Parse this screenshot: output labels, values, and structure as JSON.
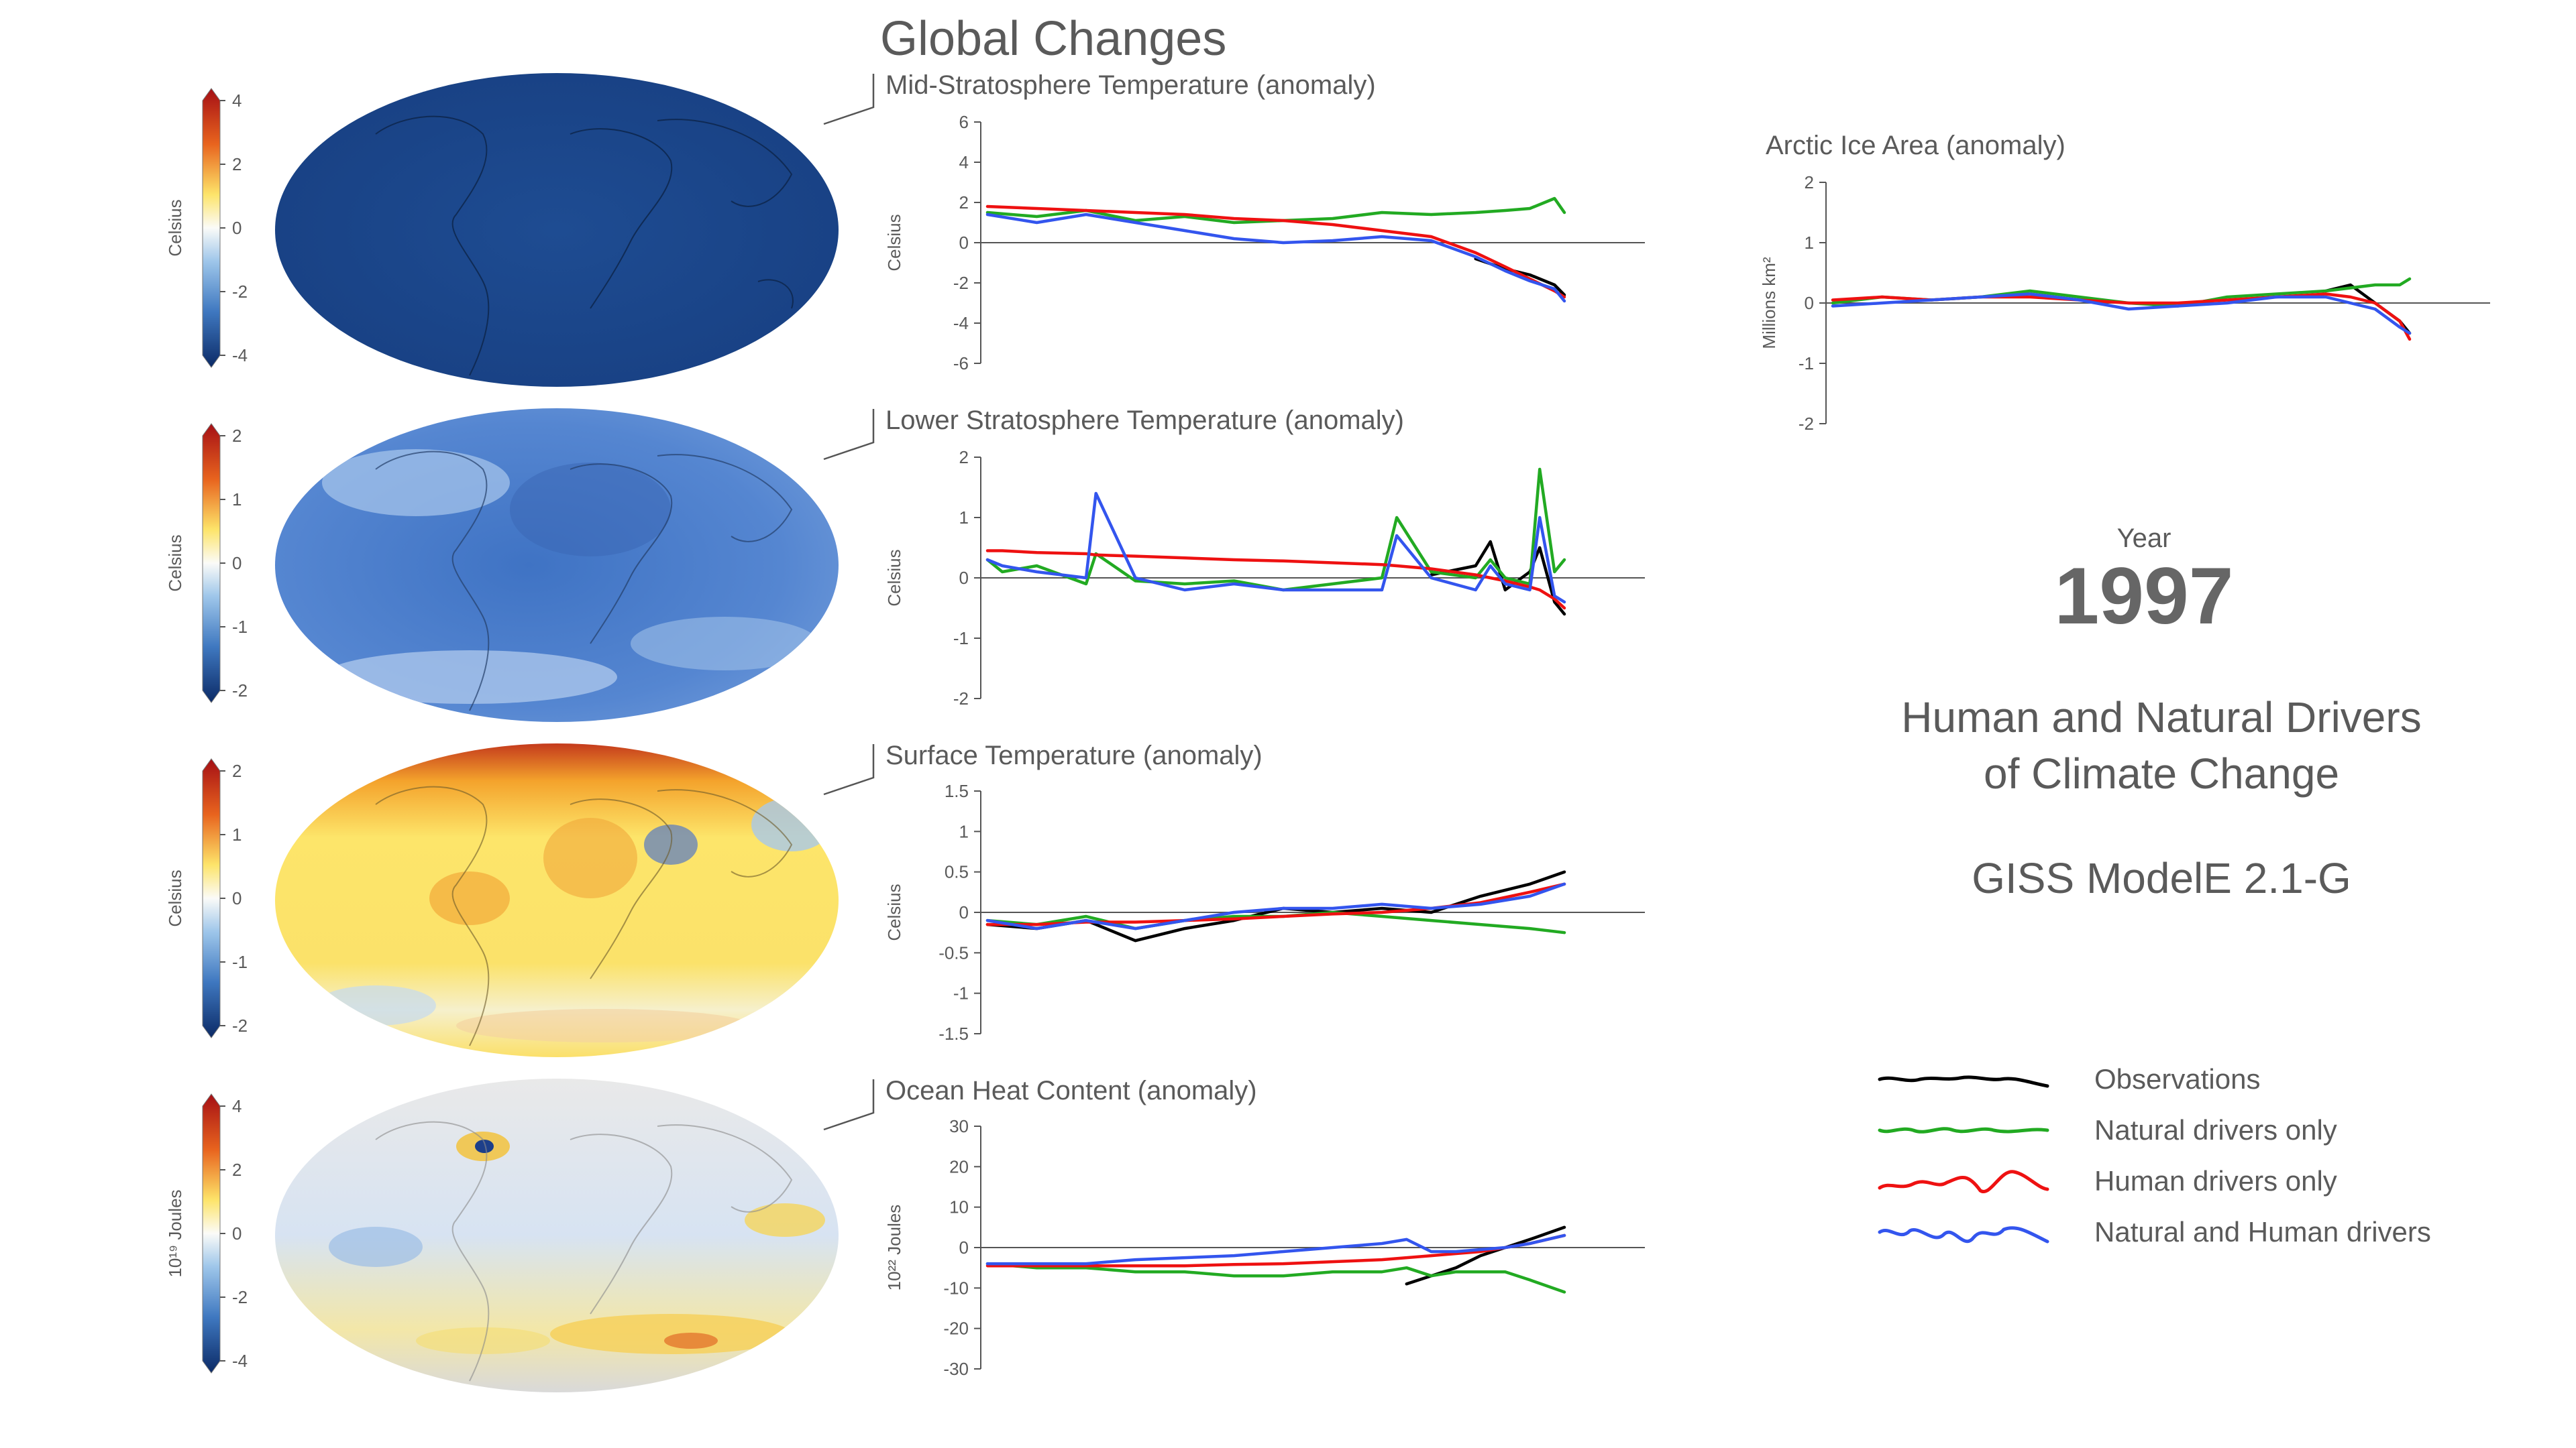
{
  "header": {
    "title": "Global Changes"
  },
  "info": {
    "year_label": "Year",
    "year": "1997",
    "subtitle_line1": "Human and Natural Drivers",
    "subtitle_line2": "of Climate Change",
    "model": "GISS ModelE 2.1-G"
  },
  "colors": {
    "observations": "#000000",
    "natural": "#22aa22",
    "human": "#ee1111",
    "both": "#3355ee"
  },
  "legend": [
    {
      "label": "Observations",
      "color": "#000000"
    },
    {
      "label": "Natural drivers only",
      "color": "#22aa22"
    },
    {
      "label": "Human drivers only",
      "color": "#ee1111"
    },
    {
      "label": "Natural and Human drivers",
      "color": "#3355ee"
    }
  ],
  "maps": [
    {
      "unit": "Celsius",
      "ticks": [
        "4",
        "2",
        "0",
        "-2",
        "-4"
      ]
    },
    {
      "unit": "Celsius",
      "ticks": [
        "2",
        "1",
        "0",
        "-1",
        "-2"
      ]
    },
    {
      "unit": "Celsius",
      "ticks": [
        "2",
        "1",
        "0",
        "-1",
        "-2"
      ]
    },
    {
      "unit": "10¹⁹ Joules",
      "ticks": [
        "4",
        "2",
        "0",
        "-2",
        "-4"
      ]
    }
  ],
  "chart_data": [
    {
      "type": "line",
      "title": "Mid-Stratosphere Temperature (anomaly)",
      "ylabel": "Celsius",
      "ylim": [
        -6,
        6
      ],
      "yticks": [
        "6",
        "4",
        "2",
        "0",
        "-2",
        "-4",
        "-6"
      ],
      "x": [
        1880,
        1890,
        1900,
        1910,
        1920,
        1930,
        1940,
        1950,
        1960,
        1970,
        1979,
        1985,
        1990,
        1995,
        1997
      ],
      "series": [
        {
          "name": "Observations",
          "values": [
            null,
            null,
            null,
            null,
            null,
            null,
            null,
            null,
            null,
            null,
            -0.8,
            -1.3,
            -1.6,
            -2.1,
            -2.6
          ]
        },
        {
          "name": "Natural drivers only",
          "values": [
            1.5,
            1.3,
            1.6,
            1.1,
            1.3,
            1.0,
            1.1,
            1.2,
            1.5,
            1.4,
            1.5,
            1.6,
            1.7,
            2.2,
            1.5
          ]
        },
        {
          "name": "Human drivers only",
          "values": [
            1.8,
            1.7,
            1.6,
            1.5,
            1.4,
            1.2,
            1.1,
            0.9,
            0.6,
            0.3,
            -0.5,
            -1.2,
            -1.8,
            -2.4,
            -2.7
          ]
        },
        {
          "name": "Natural and Human drivers",
          "values": [
            1.4,
            1.0,
            1.4,
            1.0,
            0.6,
            0.2,
            0.0,
            0.1,
            0.3,
            0.1,
            -0.7,
            -1.4,
            -1.9,
            -2.3,
            -2.9
          ]
        }
      ]
    },
    {
      "type": "line",
      "title": "Lower Stratosphere Temperature (anomaly)",
      "ylabel": "Celsius",
      "ylim": [
        -2,
        2
      ],
      "yticks": [
        "2",
        "1",
        "0",
        "-1",
        "-2"
      ],
      "x": [
        1880,
        1883,
        1890,
        1900,
        1902,
        1910,
        1920,
        1930,
        1940,
        1950,
        1960,
        1963,
        1970,
        1979,
        1982,
        1985,
        1990,
        1992,
        1995,
        1997
      ],
      "series": [
        {
          "name": "Observations",
          "values": [
            null,
            null,
            null,
            null,
            null,
            null,
            null,
            null,
            null,
            null,
            null,
            null,
            0.05,
            0.2,
            0.6,
            -0.2,
            0.1,
            0.5,
            -0.4,
            -0.6
          ]
        },
        {
          "name": "Natural drivers only",
          "values": [
            0.3,
            0.1,
            0.2,
            -0.1,
            0.4,
            -0.05,
            -0.1,
            -0.05,
            -0.2,
            -0.1,
            0.0,
            1.0,
            0.1,
            0.0,
            0.3,
            0.0,
            -0.1,
            1.8,
            0.1,
            0.3
          ]
        },
        {
          "name": "Human drivers only",
          "values": [
            0.45,
            0.45,
            0.42,
            0.4,
            0.38,
            0.36,
            0.33,
            0.3,
            0.28,
            0.25,
            0.22,
            0.2,
            0.15,
            0.05,
            0.0,
            -0.05,
            -0.15,
            -0.2,
            -0.35,
            -0.5
          ]
        },
        {
          "name": "Natural and Human drivers",
          "values": [
            0.3,
            0.2,
            0.1,
            0.0,
            1.4,
            0.0,
            -0.2,
            -0.1,
            -0.2,
            -0.2,
            -0.2,
            0.7,
            0.0,
            -0.2,
            0.2,
            -0.1,
            -0.2,
            1.0,
            -0.3,
            -0.4
          ]
        }
      ]
    },
    {
      "type": "line",
      "title": "Surface Temperature (anomaly)",
      "ylabel": "Celsius",
      "ylim": [
        -1.5,
        1.5
      ],
      "yticks": [
        "1.5",
        "1",
        "0.5",
        "0",
        "-0.5",
        "-1",
        "-1.5"
      ],
      "x": [
        1880,
        1890,
        1900,
        1910,
        1920,
        1930,
        1940,
        1950,
        1960,
        1970,
        1980,
        1990,
        1997
      ],
      "series": [
        {
          "name": "Observations",
          "values": [
            -0.15,
            -0.2,
            -0.1,
            -0.35,
            -0.2,
            -0.1,
            0.05,
            0.0,
            0.05,
            0.0,
            0.2,
            0.35,
            0.5
          ]
        },
        {
          "name": "Natural drivers only",
          "values": [
            -0.1,
            -0.15,
            -0.05,
            -0.2,
            -0.1,
            -0.05,
            -0.05,
            0.0,
            -0.05,
            -0.1,
            -0.15,
            -0.2,
            -0.25
          ]
        },
        {
          "name": "Human drivers only",
          "values": [
            -0.15,
            -0.15,
            -0.12,
            -0.12,
            -0.1,
            -0.08,
            -0.05,
            -0.02,
            0.0,
            0.05,
            0.12,
            0.25,
            0.35
          ]
        },
        {
          "name": "Natural and Human drivers",
          "values": [
            -0.1,
            -0.2,
            -0.1,
            -0.2,
            -0.1,
            0.0,
            0.05,
            0.05,
            0.1,
            0.05,
            0.1,
            0.2,
            0.35
          ]
        }
      ]
    },
    {
      "type": "line",
      "title": "Ocean Heat Content (anomaly)",
      "ylabel": "10²² Joules",
      "ylim": [
        -30,
        30
      ],
      "yticks": [
        "30",
        "20",
        "10",
        "0",
        "-10",
        "-20",
        "-30"
      ],
      "x": [
        1880,
        1890,
        1900,
        1910,
        1920,
        1930,
        1940,
        1950,
        1960,
        1965,
        1970,
        1975,
        1980,
        1985,
        1990,
        1997
      ],
      "series": [
        {
          "name": "Observations",
          "values": [
            null,
            null,
            null,
            null,
            null,
            null,
            null,
            null,
            null,
            -9,
            -7,
            -5,
            -2,
            0,
            2,
            5
          ]
        },
        {
          "name": "Natural drivers only",
          "values": [
            -4,
            -5,
            -5,
            -6,
            -6,
            -7,
            -7,
            -6,
            -6,
            -5,
            -7,
            -6,
            -6,
            -6,
            -8,
            -11
          ]
        },
        {
          "name": "Human drivers only",
          "values": [
            -4.5,
            -4.5,
            -4.5,
            -4.5,
            -4.5,
            -4.2,
            -4,
            -3.5,
            -3,
            -2.5,
            -2,
            -1.5,
            -1,
            0,
            1,
            3
          ]
        },
        {
          "name": "Natural and Human drivers",
          "values": [
            -4,
            -4,
            -4,
            -3,
            -2.5,
            -2,
            -1,
            0,
            1,
            2,
            -1,
            -1,
            -0.5,
            0,
            1,
            3
          ]
        }
      ]
    },
    {
      "type": "line",
      "title": "Arctic Ice Area (anomaly)",
      "ylabel": "Millions km²",
      "ylim": [
        -2,
        2
      ],
      "yticks": [
        "2",
        "1",
        "0",
        "-1",
        "-2"
      ],
      "x": [
        1880,
        1890,
        1900,
        1910,
        1920,
        1930,
        1940,
        1950,
        1960,
        1970,
        1980,
        1985,
        1990,
        1995,
        1997
      ],
      "series": [
        {
          "name": "Observations",
          "values": [
            null,
            null,
            null,
            null,
            null,
            null,
            null,
            null,
            null,
            null,
            0.2,
            0.3,
            0.0,
            -0.3,
            -0.5
          ]
        },
        {
          "name": "Natural drivers only",
          "values": [
            0.0,
            0.1,
            0.05,
            0.1,
            0.2,
            0.1,
            0.0,
            -0.05,
            0.1,
            0.15,
            0.2,
            0.25,
            0.3,
            0.3,
            0.4
          ]
        },
        {
          "name": "Human drivers only",
          "values": [
            0.05,
            0.1,
            0.05,
            0.1,
            0.1,
            0.05,
            0.0,
            0.0,
            0.05,
            0.1,
            0.15,
            0.1,
            0.0,
            -0.3,
            -0.6
          ]
        },
        {
          "name": "Natural and Human drivers",
          "values": [
            -0.05,
            0.0,
            0.05,
            0.1,
            0.15,
            0.05,
            -0.1,
            -0.05,
            0.0,
            0.1,
            0.1,
            0.0,
            -0.1,
            -0.4,
            -0.5
          ]
        }
      ]
    }
  ]
}
